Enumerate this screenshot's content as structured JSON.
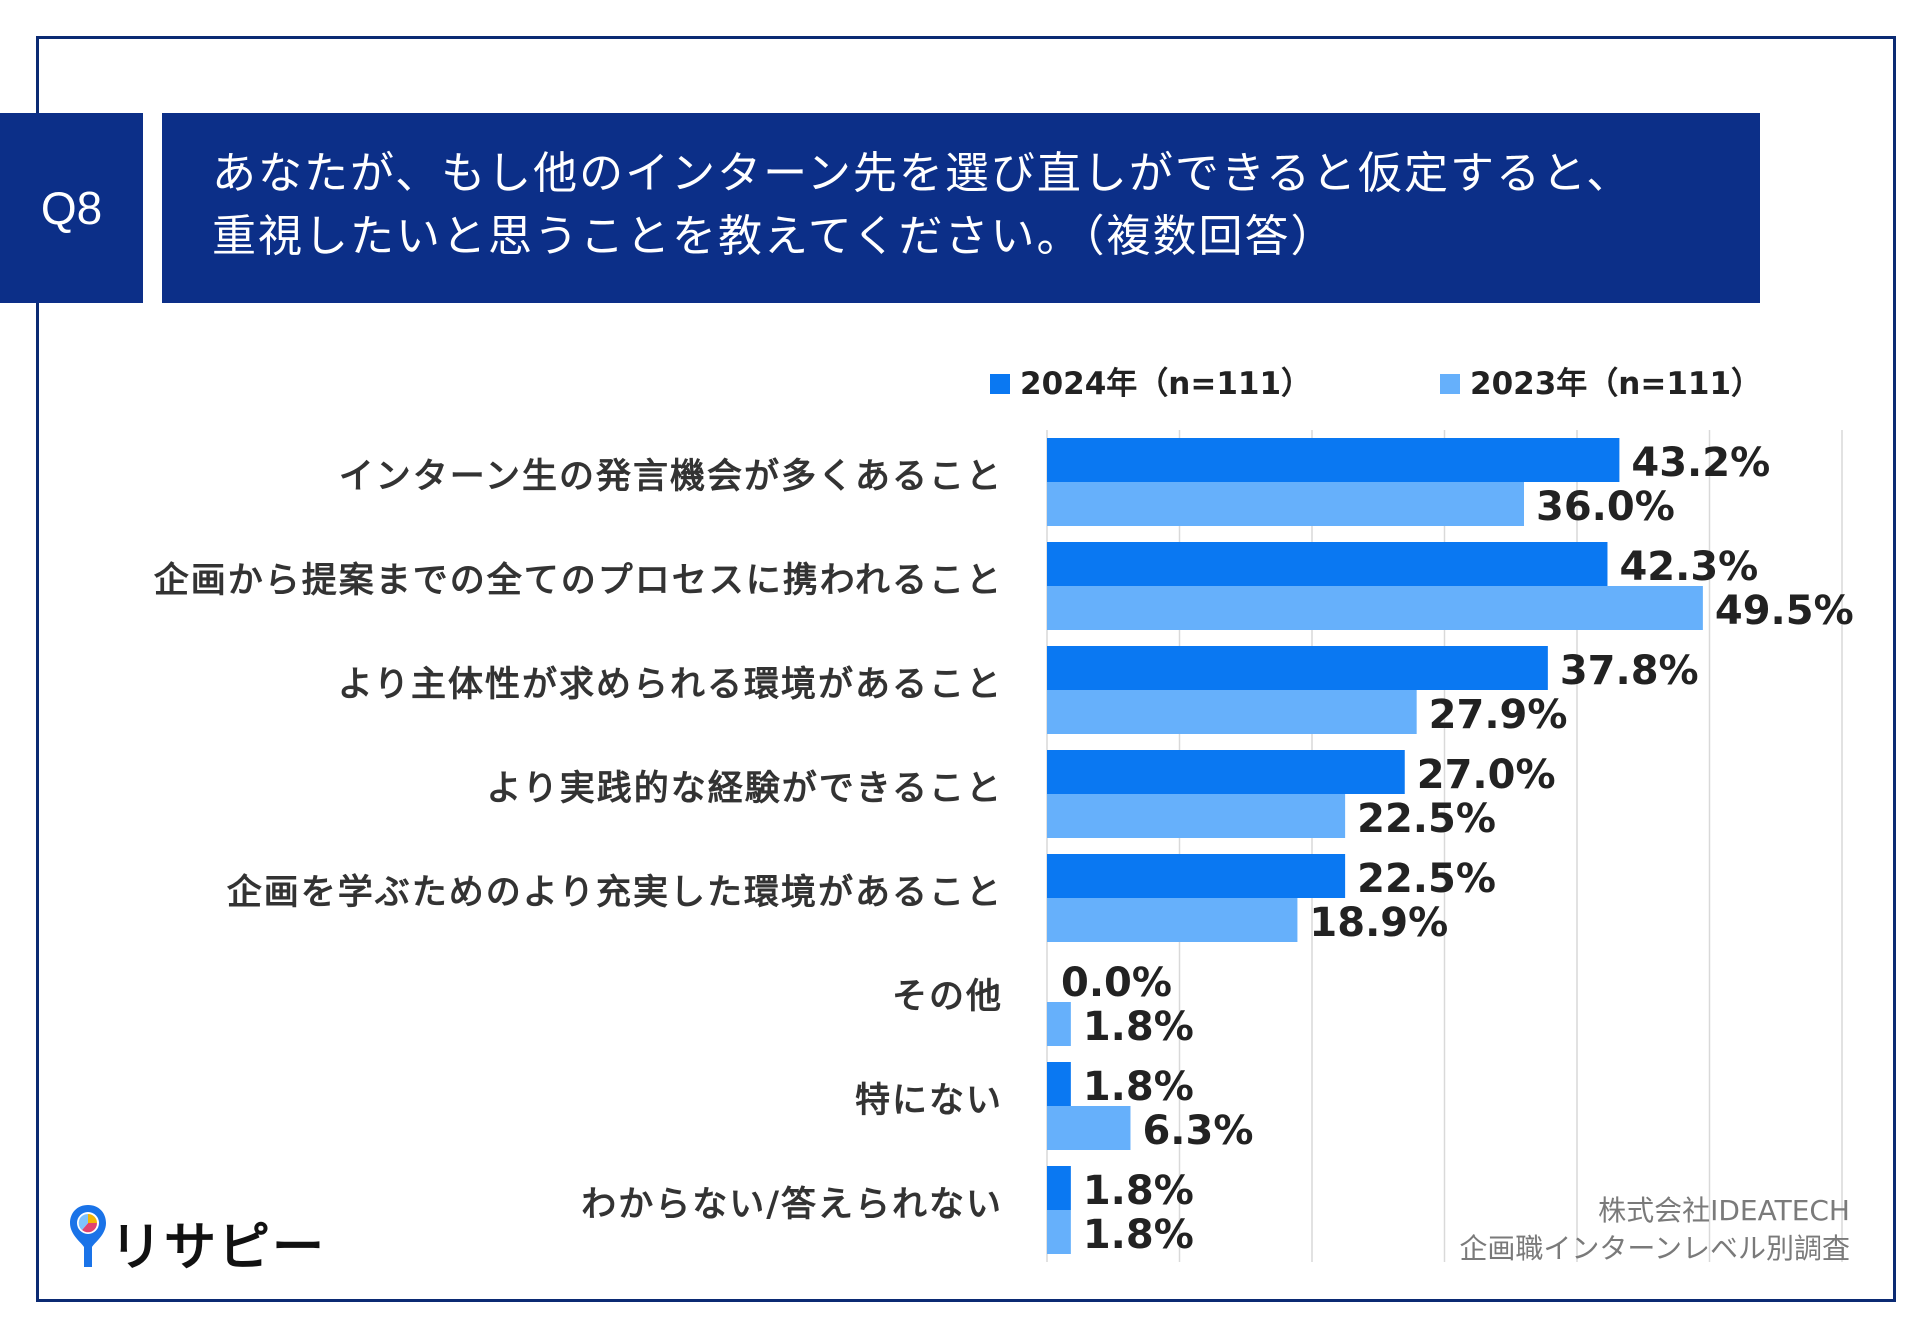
{
  "header": {
    "q_label": "Q8",
    "title_line1": "あなたが、もし他のインターン先を選び直しができると仮定すると、",
    "title_line2": "重視したいと思うことを教えてください。（複数回答）"
  },
  "chart_data": {
    "type": "bar",
    "orientation": "horizontal",
    "categories": [
      "インターン生の発言機会が多くあること",
      "企画から提案までの全てのプロセスに携われること",
      "より主体性が求められる環境があること",
      "より実践的な経験ができること",
      "企画を学ぶためのより充実した環境があること",
      "その他",
      "特にない",
      "わからない/答えられない"
    ],
    "series": [
      {
        "name": "2024年（n=111）",
        "color": "#0a78f2",
        "values": [
          43.2,
          42.3,
          37.8,
          27.0,
          22.5,
          0.0,
          1.8,
          1.8
        ],
        "labels": [
          "43.2%",
          "42.3%",
          "37.8%",
          "27.0%",
          "22.5%",
          "0.0%",
          "1.8%",
          "1.8%"
        ]
      },
      {
        "name": "2023年（n=111）",
        "color": "#66b0fb",
        "values": [
          36.0,
          49.5,
          27.9,
          22.5,
          18.9,
          1.8,
          6.3,
          1.8
        ],
        "labels": [
          "36.0%",
          "49.5%",
          "27.9%",
          "22.5%",
          "18.9%",
          "1.8%",
          "6.3%",
          "1.8%"
        ]
      }
    ],
    "xlim": [
      0,
      60
    ],
    "grid": true,
    "legend": "top-right"
  },
  "logo": {
    "text": "リサピー"
  },
  "credit": {
    "line1": "株式会社IDEATECH",
    "line2": "企画職インターンレベル別調査"
  }
}
